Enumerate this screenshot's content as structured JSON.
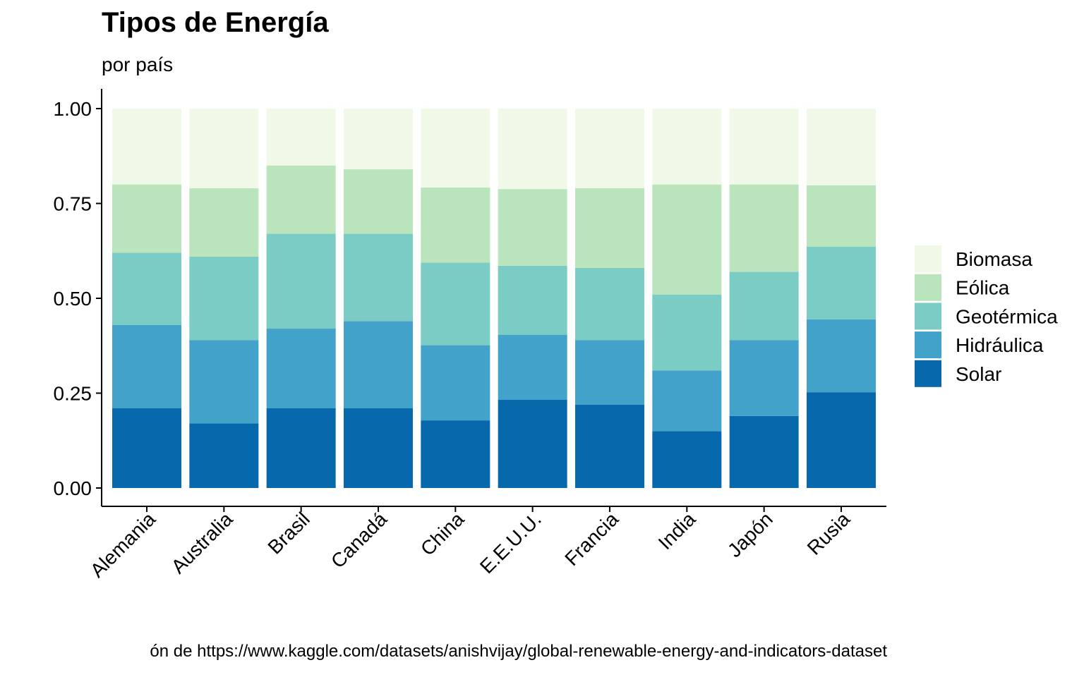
{
  "chart_data": {
    "type": "bar",
    "stacked": "percent",
    "title": "Tipos de Energía",
    "subtitle": "por país",
    "caption": "ón de https://www.kaggle.com/datasets/anishvijay/global-renewable-energy-and-indicators-dataset",
    "xlabel": "",
    "ylabel": "",
    "ylim": [
      0,
      1
    ],
    "yticks": [
      "0.00",
      "0.25",
      "0.50",
      "0.75",
      "1.00"
    ],
    "grid": false,
    "legend_position": "right",
    "categories": [
      "Alemania",
      "Australia",
      "Brasil",
      "Canadá",
      "China",
      "E.E.U.U.",
      "Francia",
      "India",
      "Japón",
      "Rusia"
    ],
    "series": [
      {
        "name": "Solar",
        "color": "#0868ac",
        "values": [
          0.21,
          0.17,
          0.21,
          0.21,
          0.18,
          0.23,
          0.22,
          0.15,
          0.19,
          0.25
        ]
      },
      {
        "name": "Hidráulica",
        "color": "#43a2ca",
        "values": [
          0.22,
          0.22,
          0.21,
          0.23,
          0.2,
          0.17,
          0.17,
          0.16,
          0.2,
          0.19
        ]
      },
      {
        "name": "Geotérmica",
        "color": "#7bccc4",
        "values": [
          0.19,
          0.22,
          0.25,
          0.23,
          0.22,
          0.18,
          0.19,
          0.2,
          0.18,
          0.19
        ]
      },
      {
        "name": "Eólica",
        "color": "#bae4bc",
        "values": [
          0.18,
          0.18,
          0.18,
          0.17,
          0.2,
          0.2,
          0.21,
          0.29,
          0.23,
          0.16
        ]
      },
      {
        "name": "Biomasa",
        "color": "#f0f9e8",
        "values": [
          0.2,
          0.21,
          0.15,
          0.16,
          0.21,
          0.21,
          0.21,
          0.2,
          0.2,
          0.2
        ]
      }
    ],
    "legend_order": [
      "Biomasa",
      "Eólica",
      "Geotérmica",
      "Hidráulica",
      "Solar"
    ]
  }
}
